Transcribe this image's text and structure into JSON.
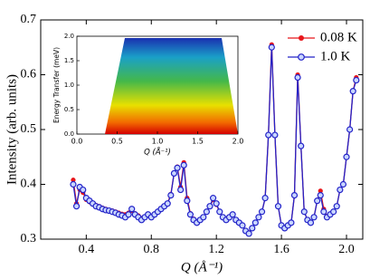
{
  "chart_data": [
    {
      "type": "line",
      "xlabel": "Q (Å⁻¹)",
      "ylabel": "Intensity (arb. units)",
      "legend": "upper right",
      "xlim": [
        0.12,
        2.1
      ],
      "ylim": [
        0.3,
        0.7
      ],
      "xticks": [
        0.4,
        0.8,
        1.2,
        1.6,
        {
          "value": 2,
          "label": "2.0"
        }
      ],
      "yticks": [
        0.3,
        0.4,
        0.5,
        0.6,
        0.7
      ],
      "x": [
        0.32,
        0.34,
        0.36,
        0.38,
        0.4,
        0.42,
        0.44,
        0.46,
        0.48,
        0.5,
        0.52,
        0.54,
        0.56,
        0.58,
        0.6,
        0.62,
        0.64,
        0.66,
        0.68,
        0.7,
        0.72,
        0.74,
        0.76,
        0.78,
        0.8,
        0.82,
        0.84,
        0.86,
        0.88,
        0.9,
        0.92,
        0.94,
        0.96,
        0.98,
        1.0,
        1.02,
        1.04,
        1.06,
        1.08,
        1.1,
        1.12,
        1.14,
        1.16,
        1.18,
        1.2,
        1.22,
        1.24,
        1.26,
        1.28,
        1.3,
        1.32,
        1.34,
        1.36,
        1.38,
        1.4,
        1.42,
        1.44,
        1.46,
        1.48,
        1.5,
        1.52,
        1.54,
        1.56,
        1.58,
        1.6,
        1.62,
        1.64,
        1.66,
        1.68,
        1.7,
        1.72,
        1.74,
        1.76,
        1.78,
        1.8,
        1.82,
        1.84,
        1.86,
        1.88,
        1.9,
        1.92,
        1.94,
        1.96,
        1.98,
        2.0,
        2.02,
        2.04,
        2.06
      ],
      "series": [
        {
          "name": "0.08 K",
          "color": "#e8161b",
          "values": [
            0.408,
            0.365,
            0.39,
            0.385,
            0.372,
            0.368,
            0.366,
            0.362,
            0.36,
            0.357,
            0.355,
            0.353,
            0.352,
            0.35,
            0.348,
            0.346,
            0.345,
            0.348,
            0.352,
            0.347,
            0.343,
            0.338,
            0.341,
            0.344,
            0.341,
            0.346,
            0.35,
            0.355,
            0.36,
            0.366,
            0.382,
            0.42,
            0.432,
            0.395,
            0.44,
            0.375,
            0.347,
            0.337,
            0.332,
            0.336,
            0.341,
            0.35,
            0.36,
            0.372,
            0.363,
            0.35,
            0.341,
            0.336,
            0.34,
            0.344,
            0.336,
            0.331,
            0.325,
            0.316,
            0.312,
            0.32,
            0.33,
            0.34,
            0.35,
            0.375,
            0.49,
            0.655,
            0.49,
            0.36,
            0.325,
            0.32,
            0.325,
            0.33,
            0.38,
            0.6,
            0.47,
            0.35,
            0.335,
            0.33,
            0.34,
            0.37,
            0.388,
            0.355,
            0.342,
            0.346,
            0.35,
            0.36,
            0.39,
            0.4,
            0.45,
            0.5,
            0.57,
            0.595
          ]
        },
        {
          "name": "1.0 K",
          "color": "#2323c8",
          "values": [
            0.4,
            0.36,
            0.395,
            0.39,
            0.375,
            0.37,
            0.365,
            0.36,
            0.358,
            0.355,
            0.353,
            0.352,
            0.35,
            0.348,
            0.345,
            0.343,
            0.34,
            0.345,
            0.355,
            0.345,
            0.34,
            0.335,
            0.34,
            0.345,
            0.34,
            0.345,
            0.35,
            0.355,
            0.36,
            0.365,
            0.38,
            0.42,
            0.43,
            0.39,
            0.435,
            0.37,
            0.345,
            0.335,
            0.33,
            0.335,
            0.34,
            0.35,
            0.36,
            0.375,
            0.365,
            0.35,
            0.34,
            0.335,
            0.34,
            0.345,
            0.335,
            0.33,
            0.325,
            0.315,
            0.31,
            0.32,
            0.33,
            0.34,
            0.35,
            0.375,
            0.49,
            0.65,
            0.49,
            0.36,
            0.325,
            0.32,
            0.325,
            0.33,
            0.38,
            0.595,
            0.47,
            0.35,
            0.335,
            0.33,
            0.34,
            0.37,
            0.38,
            0.35,
            0.34,
            0.345,
            0.35,
            0.36,
            0.39,
            0.4,
            0.45,
            0.5,
            0.57,
            0.59
          ]
        }
      ]
    },
    {
      "type": "heatmap",
      "xlabel": "Q (Å⁻¹)",
      "ylabel": "Energy Transfer (meV)",
      "xlim": [
        0,
        2
      ],
      "ylim": [
        0,
        2
      ],
      "xticks": [
        {
          "value": 0,
          "label": "0.0"
        },
        0.5,
        {
          "value": 1,
          "label": "1.0"
        },
        1.5,
        {
          "value": 2,
          "label": "2.0"
        }
      ],
      "yticks": [
        {
          "value": 0,
          "label": "0.0"
        },
        0.5,
        {
          "value": 1,
          "label": "1.0"
        },
        1.5,
        {
          "value": 2,
          "label": "2.0"
        }
      ]
    }
  ]
}
